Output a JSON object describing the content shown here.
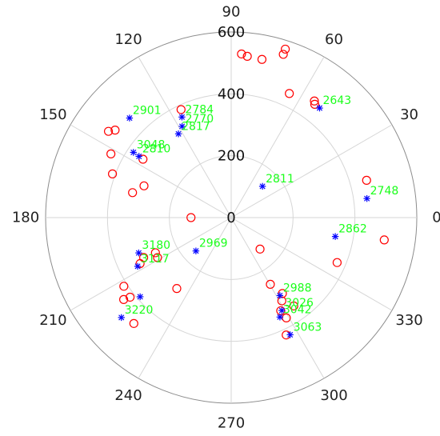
{
  "chart_data": {
    "type": "scatter",
    "coordinate_system": "polar",
    "title": "",
    "r_max": 600,
    "r_ticks": [
      0,
      200,
      400,
      600
    ],
    "theta_ticks": [
      0,
      30,
      60,
      90,
      120,
      150,
      180,
      210,
      240,
      270,
      300,
      330
    ],
    "theta_direction": "counterclockwise",
    "theta_zero": "right",
    "grid": true,
    "colors": {
      "red_series": "#ff0000",
      "blue_series": "#0000ff",
      "labels": "#1aff1a",
      "grid": "#d6d6d6"
    },
    "series": [
      {
        "marker": "circle",
        "color": "#ff0000",
        "points": [
          {
            "theta": 15.4,
            "r": 454
          },
          {
            "theta": -8.3,
            "r": 500
          },
          {
            "theta": 54.5,
            "r": 463
          },
          {
            "theta": 53.6,
            "r": 455
          },
          {
            "theta": 64.9,
            "r": 443
          },
          {
            "theta": 72.3,
            "r": 554
          },
          {
            "theta": 72.2,
            "r": 572
          },
          {
            "theta": 79.0,
            "r": 521
          },
          {
            "theta": 86.4,
            "r": 530
          },
          {
            "theta": 84.3,
            "r": 524
          },
          {
            "theta": 114.9,
            "r": 385
          },
          {
            "theta": 144.9,
            "r": 485
          },
          {
            "theta": 152.1,
            "r": 440
          },
          {
            "theta": 159.8,
            "r": 409
          },
          {
            "theta": 165.8,
            "r": 329
          },
          {
            "theta": 146.5,
            "r": 342
          },
          {
            "theta": 143.0,
            "r": 470
          },
          {
            "theta": 160.0,
            "r": 300
          },
          {
            "theta": -47.5,
            "r": 138
          },
          {
            "theta": 180.0,
            "r": 130
          },
          {
            "theta": 204.5,
            "r": 311
          },
          {
            "theta": 204.9,
            "r": 270
          },
          {
            "theta": 208.5,
            "r": 271
          },
          {
            "theta": 206.8,
            "r": 330
          },
          {
            "theta": 232.5,
            "r": 289
          },
          {
            "theta": 212.6,
            "r": 412
          },
          {
            "theta": 218.2,
            "r": 416
          },
          {
            "theta": 217.3,
            "r": 437
          },
          {
            "theta": 227.4,
            "r": 465
          },
          {
            "theta": 304.0,
            "r": 296
          },
          {
            "theta": 301.3,
            "r": 315
          },
          {
            "theta": 300.4,
            "r": 250
          },
          {
            "theta": 298.0,
            "r": 341
          },
          {
            "theta": 305.3,
            "r": 350
          },
          {
            "theta": 298.8,
            "r": 370
          },
          {
            "theta": 295.1,
            "r": 419
          },
          {
            "theta": -23.0,
            "r": 372
          }
        ]
      },
      {
        "marker": "asterisk",
        "color": "#0000ff",
        "points": [
          {
            "theta": 45.0,
            "r": 143,
            "label": "2811"
          },
          {
            "theta": 51.1,
            "r": 455,
            "label": "2643"
          },
          {
            "theta": 8.0,
            "r": 443,
            "label": "2748"
          },
          {
            "theta": -10.3,
            "r": 342,
            "label": "2862"
          },
          {
            "theta": 116.1,
            "r": 362,
            "label": "2784"
          },
          {
            "theta": 122.2,
            "r": 320,
            "label": "2817"
          },
          {
            "theta": 118.3,
            "r": 335,
            "label": "2770"
          },
          {
            "theta": 146.4,
            "r": 358,
            "label": "2810"
          },
          {
            "theta": 135.6,
            "r": 460,
            "label": "2901"
          },
          {
            "theta": 146.3,
            "r": 380,
            "label": "3048"
          },
          {
            "theta": 223.4,
            "r": 157,
            "label": "2969"
          },
          {
            "theta": 207.5,
            "r": 341,
            "label": "3117"
          },
          {
            "theta": 200.9,
            "r": 320,
            "label": "3180"
          },
          {
            "theta": 222.3,
            "r": 480,
            "label": "3220"
          },
          {
            "theta": 302.0,
            "r": 297,
            "label": "2988"
          },
          {
            "theta": 298.6,
            "r": 342,
            "label": "3026"
          },
          {
            "theta": 296.1,
            "r": 358,
            "label": "3042"
          },
          {
            "theta": 296.7,
            "r": 424,
            "label": "3063"
          },
          {
            "theta": 221.0,
            "r": 390
          }
        ]
      }
    ]
  }
}
